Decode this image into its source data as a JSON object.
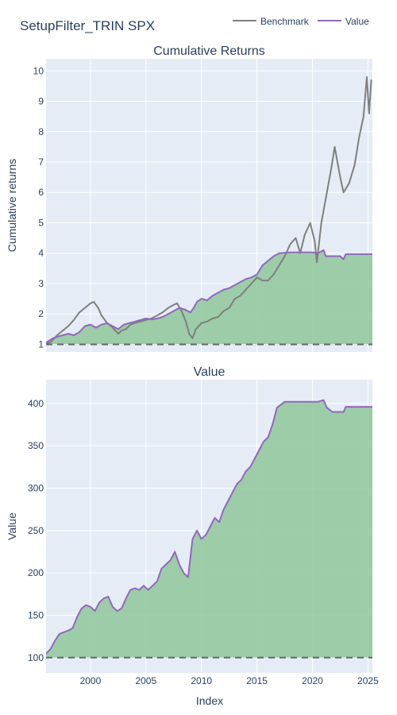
{
  "figure": {
    "title": "SetupFilter_TRIN SPX",
    "x_axis_label": "Index"
  },
  "legend": {
    "placement": "top-right",
    "items": [
      {
        "label": "Benchmark",
        "color": "#7f7f7f"
      },
      {
        "label": "Value",
        "color": "#9467bd"
      }
    ]
  },
  "colors": {
    "plot_background": "#e5ecf6",
    "grid": "#ffffff",
    "benchmark": "#7f7f7f",
    "value": "#9467bd",
    "fill_above": "#8fc79a",
    "fill_below": "#3d7a3d",
    "baseline": "#666666"
  },
  "chart_data": [
    {
      "type": "line",
      "title": "Cumulative Returns",
      "xlabel": "",
      "ylabel": "Cumulative returns",
      "xlim": [
        1996.0,
        2025.4
      ],
      "ylim": [
        0.75,
        10.4
      ],
      "grid": true,
      "x_ticks": [
        {
          "value": 2000,
          "label": ""
        },
        {
          "value": 2005,
          "label": ""
        },
        {
          "value": 2010,
          "label": ""
        },
        {
          "value": 2015,
          "label": ""
        },
        {
          "value": 2020,
          "label": ""
        },
        {
          "value": 2025,
          "label": ""
        }
      ],
      "y_ticks": [
        {
          "value": 1,
          "label": "1"
        },
        {
          "value": 2,
          "label": "2"
        },
        {
          "value": 3,
          "label": "3"
        },
        {
          "value": 4,
          "label": "4"
        },
        {
          "value": 5,
          "label": "5"
        },
        {
          "value": 6,
          "label": "6"
        },
        {
          "value": 7,
          "label": "7"
        },
        {
          "value": 8,
          "label": "8"
        },
        {
          "value": 9,
          "label": "9"
        },
        {
          "value": 10,
          "label": "10"
        }
      ],
      "baseline": 1,
      "series": [
        {
          "name": "Benchmark",
          "x": [
            1996.0,
            1996.5,
            1997.0,
            1997.5,
            1998.0,
            1998.5,
            1999.0,
            1999.5,
            2000.0,
            2000.3,
            2000.7,
            2001.0,
            2001.5,
            2002.0,
            2002.5,
            2002.8,
            2003.2,
            2003.6,
            2004.0,
            2004.5,
            2005.0,
            2005.5,
            2006.0,
            2006.5,
            2007.0,
            2007.5,
            2007.8,
            2008.2,
            2008.6,
            2008.9,
            2009.2,
            2009.5,
            2010.0,
            2010.5,
            2011.0,
            2011.5,
            2012.0,
            2012.5,
            2013.0,
            2013.5,
            2014.0,
            2014.5,
            2015.0,
            2015.5,
            2016.0,
            2016.5,
            2017.0,
            2017.5,
            2018.0,
            2018.5,
            2018.9,
            2019.3,
            2019.8,
            2020.2,
            2020.4,
            2020.8,
            2021.3,
            2021.7,
            2022.0,
            2022.5,
            2022.8,
            2023.3,
            2023.8,
            2024.2,
            2024.6,
            2024.9,
            2025.1,
            2025.3
          ],
          "values": [
            1.0,
            1.1,
            1.3,
            1.45,
            1.6,
            1.8,
            2.05,
            2.2,
            2.35,
            2.4,
            2.2,
            1.95,
            1.7,
            1.55,
            1.35,
            1.45,
            1.5,
            1.65,
            1.7,
            1.75,
            1.8,
            1.85,
            1.95,
            2.05,
            2.2,
            2.3,
            2.35,
            2.1,
            1.75,
            1.35,
            1.2,
            1.5,
            1.7,
            1.75,
            1.85,
            1.9,
            2.1,
            2.2,
            2.5,
            2.6,
            2.8,
            3.0,
            3.2,
            3.1,
            3.1,
            3.3,
            3.6,
            3.9,
            4.3,
            4.5,
            4.0,
            4.6,
            5.0,
            4.4,
            3.7,
            5.0,
            6.0,
            6.8,
            7.5,
            6.5,
            6.0,
            6.3,
            6.9,
            7.8,
            8.5,
            9.8,
            8.6,
            9.7
          ]
        },
        {
          "name": "Value",
          "x": [
            1996.0,
            1996.2,
            1996.6,
            1997.0,
            1997.5,
            1998.0,
            1998.5,
            1999.0,
            1999.5,
            2000.0,
            2000.5,
            2001.0,
            2001.5,
            2002.0,
            2002.5,
            2003.0,
            2003.5,
            2004.0,
            2004.5,
            2005.0,
            2005.5,
            2006.0,
            2006.5,
            2007.0,
            2007.5,
            2008.0,
            2008.5,
            2009.0,
            2009.3,
            2009.6,
            2010.0,
            2010.5,
            2011.0,
            2011.5,
            2012.0,
            2012.5,
            2013.0,
            2013.5,
            2014.0,
            2014.5,
            2015.0,
            2015.5,
            2016.0,
            2016.5,
            2017.0,
            2018.0,
            2019.0,
            2020.0,
            2020.5,
            2021.0,
            2021.2,
            2021.6,
            2022.0,
            2022.5,
            2022.8,
            2023.0,
            2024.0,
            2025.4
          ],
          "values": [
            1.05,
            1.1,
            1.2,
            1.25,
            1.3,
            1.35,
            1.3,
            1.4,
            1.6,
            1.65,
            1.55,
            1.65,
            1.7,
            1.6,
            1.5,
            1.65,
            1.7,
            1.75,
            1.8,
            1.85,
            1.82,
            1.85,
            1.9,
            2.0,
            2.1,
            2.2,
            2.15,
            2.05,
            2.2,
            2.4,
            2.5,
            2.45,
            2.6,
            2.7,
            2.8,
            2.85,
            2.95,
            3.05,
            3.15,
            3.2,
            3.3,
            3.6,
            3.75,
            3.9,
            4.0,
            4.03,
            4.03,
            4.03,
            4.0,
            4.1,
            3.9,
            3.9,
            3.9,
            3.9,
            3.8,
            3.97,
            3.97,
            3.97
          ]
        }
      ]
    },
    {
      "type": "area",
      "title": "Value",
      "xlabel": "Index",
      "ylabel": "Value",
      "xlim": [
        1996.0,
        2025.4
      ],
      "ylim": [
        82,
        428
      ],
      "grid": true,
      "x_ticks": [
        {
          "value": 2000,
          "label": "2000"
        },
        {
          "value": 2005,
          "label": "2005"
        },
        {
          "value": 2010,
          "label": "2010"
        },
        {
          "value": 2015,
          "label": "2015"
        },
        {
          "value": 2020,
          "label": "2020"
        },
        {
          "value": 2025,
          "label": "2025"
        }
      ],
      "y_ticks": [
        {
          "value": 100,
          "label": "100"
        },
        {
          "value": 150,
          "label": "150"
        },
        {
          "value": 200,
          "label": "200"
        },
        {
          "value": 250,
          "label": "250"
        },
        {
          "value": 300,
          "label": "300"
        },
        {
          "value": 350,
          "label": "350"
        },
        {
          "value": 400,
          "label": "400"
        }
      ],
      "baseline": 100,
      "series": [
        {
          "name": "Value",
          "x": [
            1996.0,
            1996.4,
            1996.8,
            1997.2,
            1997.6,
            1998.0,
            1998.4,
            1998.8,
            1999.2,
            1999.6,
            2000.0,
            2000.4,
            2000.8,
            2001.2,
            2001.6,
            2002.0,
            2002.4,
            2002.8,
            2003.2,
            2003.6,
            2004.0,
            2004.4,
            2004.8,
            2005.2,
            2005.6,
            2006.0,
            2006.4,
            2006.8,
            2007.2,
            2007.6,
            2008.0,
            2008.4,
            2008.8,
            2009.2,
            2009.6,
            2010.0,
            2010.4,
            2010.8,
            2011.2,
            2011.6,
            2012.0,
            2012.4,
            2012.8,
            2013.2,
            2013.6,
            2014.0,
            2014.4,
            2014.8,
            2015.2,
            2015.6,
            2016.0,
            2016.4,
            2016.8,
            2017.5,
            2018.5,
            2019.5,
            2020.5,
            2021.0,
            2021.3,
            2021.8,
            2022.4,
            2022.8,
            2023.0,
            2024.0,
            2025.4
          ],
          "values": [
            105,
            110,
            120,
            128,
            130,
            132,
            135,
            148,
            158,
            162,
            160,
            155,
            165,
            170,
            172,
            160,
            155,
            158,
            170,
            180,
            182,
            180,
            185,
            180,
            185,
            190,
            205,
            210,
            215,
            225,
            210,
            200,
            195,
            240,
            250,
            240,
            245,
            255,
            265,
            260,
            275,
            285,
            295,
            305,
            310,
            320,
            325,
            335,
            345,
            355,
            360,
            375,
            395,
            402,
            402,
            402,
            402,
            404,
            395,
            390,
            390,
            390,
            396,
            396,
            396
          ]
        }
      ]
    }
  ]
}
